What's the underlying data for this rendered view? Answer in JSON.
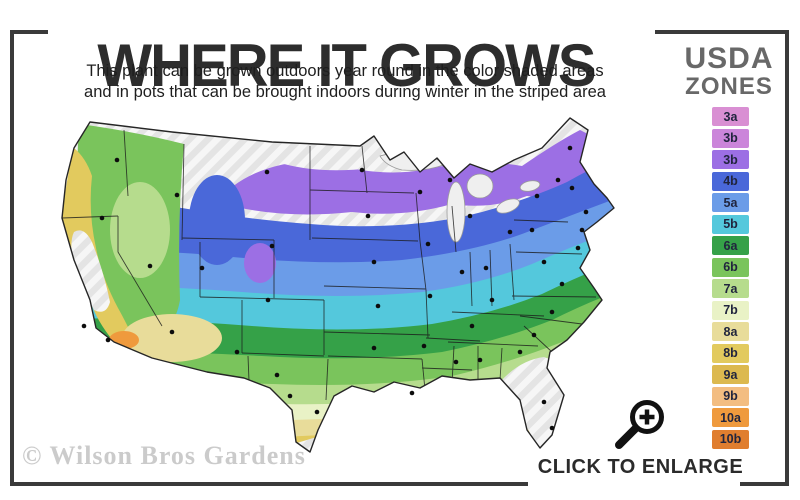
{
  "header": {
    "title": "WHERE IT GROWS",
    "subtitle_line1": "This plant can be grown outdoors year round in the color shaded areas",
    "subtitle_line2": "and in pots that can be brought indoors during winter in the striped area"
  },
  "legend": {
    "title_line1": "USDA",
    "title_line2": "ZONES",
    "zones": [
      {
        "label": "3a",
        "color": "#d98fd3"
      },
      {
        "label": "3b",
        "color": "#cb85da"
      },
      {
        "label": "3b",
        "color": "#9c6fe4"
      },
      {
        "label": "4b",
        "color": "#4a68d9"
      },
      {
        "label": "5a",
        "color": "#6b9ce8"
      },
      {
        "label": "5b",
        "color": "#54c8dc"
      },
      {
        "label": "6a",
        "color": "#35a148"
      },
      {
        "label": "6b",
        "color": "#7ac45c"
      },
      {
        "label": "7a",
        "color": "#b6dc8d"
      },
      {
        "label": "7b",
        "color": "#e9f2c6"
      },
      {
        "label": "8a",
        "color": "#e8dc9a"
      },
      {
        "label": "8b",
        "color": "#e2ca5e"
      },
      {
        "label": "9a",
        "color": "#dcb94f"
      },
      {
        "label": "9b",
        "color": "#f3bd81"
      },
      {
        "label": "10a",
        "color": "#ef9a3d"
      },
      {
        "label": "10b",
        "color": "#e07e2f"
      }
    ]
  },
  "footer": {
    "watermark": "© Wilson Bros Gardens",
    "enlarge_label": "CLICK TO ENLARGE"
  },
  "colors": {
    "frame": "#3a3a3a",
    "title_text": "#2d2d2d",
    "legend_title": "#686868",
    "watermark": "#cbcbcb",
    "map_outline": "#262626"
  }
}
